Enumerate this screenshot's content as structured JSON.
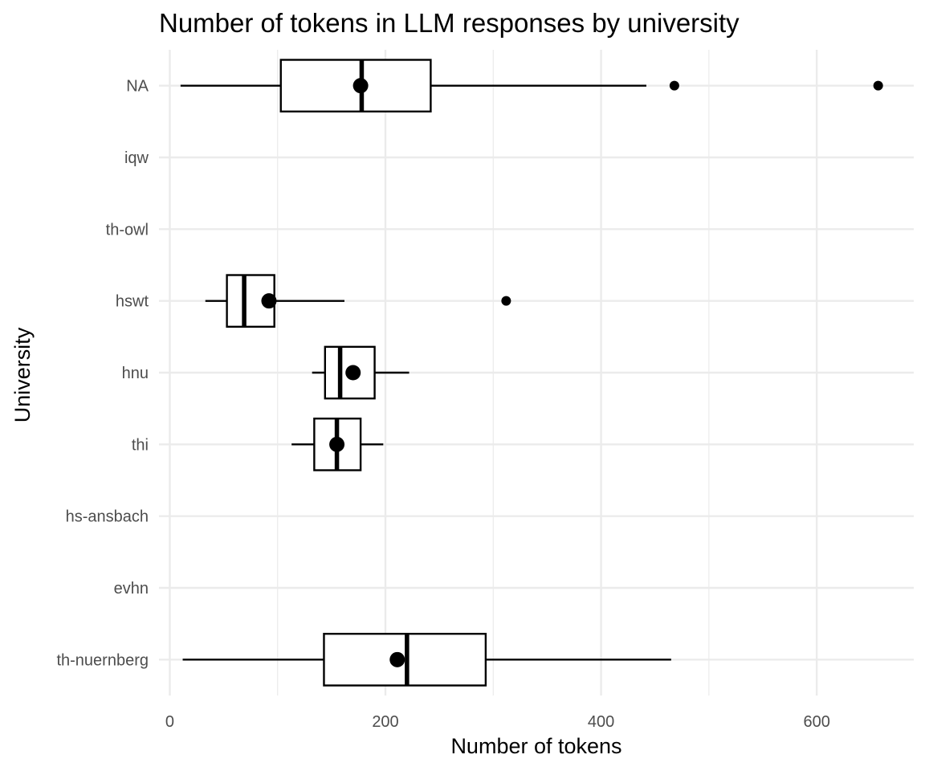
{
  "chart_data": {
    "type": "boxplot",
    "title": "Number of tokens in LLM responses by university",
    "xlabel": "Number of tokens",
    "ylabel": "University",
    "xlim": [
      -10,
      690
    ],
    "x_ticks": [
      0,
      200,
      400,
      600
    ],
    "x_tick_labels": [
      "0",
      "200",
      "400",
      "600"
    ],
    "categories": [
      "th-nuernberg",
      "evhn",
      "hs-ansbach",
      "thi",
      "hnu",
      "hswt",
      "th-owl",
      "iqw",
      "NA"
    ],
    "grid": true,
    "boxes": [
      {
        "category": "NA",
        "whisker_low": 10,
        "q1": 103,
        "median": 178,
        "q3": 242,
        "whisker_high": 442,
        "mean": 177,
        "outliers": [
          468,
          657
        ]
      },
      {
        "category": "hswt",
        "whisker_low": 33,
        "q1": 53,
        "median": 69,
        "q3": 97,
        "whisker_high": 162,
        "mean": 92,
        "outliers": [
          312
        ]
      },
      {
        "category": "hnu",
        "whisker_low": 132,
        "q1": 144,
        "median": 158,
        "q3": 190,
        "whisker_high": 222,
        "mean": 170,
        "outliers": []
      },
      {
        "category": "thi",
        "whisker_low": 113,
        "q1": 134,
        "median": 155,
        "q3": 177,
        "whisker_high": 198,
        "mean": 155,
        "outliers": []
      },
      {
        "category": "th-nuernberg",
        "whisker_low": 12,
        "q1": 143,
        "median": 220,
        "q3": 293,
        "whisker_high": 465,
        "mean": 211,
        "outliers": []
      }
    ]
  }
}
